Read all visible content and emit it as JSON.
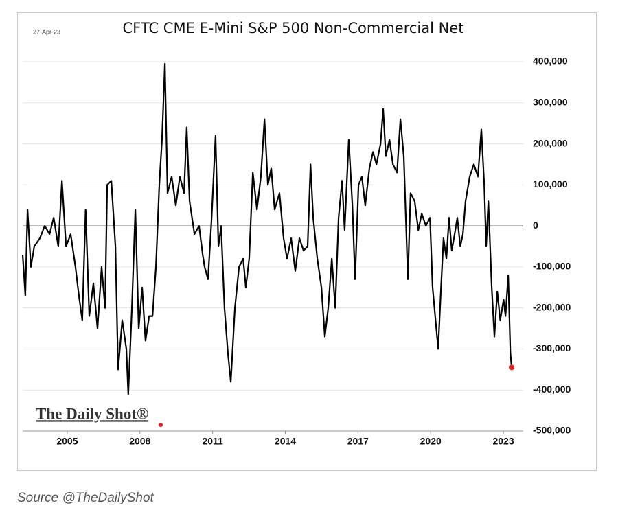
{
  "chart_data": {
    "type": "line",
    "title": "CFTC CME E-Mini S&P 500 Non-Commercial Net",
    "date_note": "27-Apr-23",
    "watermark": "The Daily Shot®",
    "x": [
      2003.16,
      2003.27,
      2003.36,
      2003.5,
      2003.64,
      2003.87,
      2004.07,
      2004.27,
      2004.44,
      2004.63,
      2004.78,
      2004.95,
      2005.14,
      2005.34,
      2005.48,
      2005.62,
      2005.76,
      2005.91,
      2006.08,
      2006.25,
      2006.42,
      2006.56,
      2006.65,
      2006.82,
      2006.99,
      2007.1,
      2007.27,
      2007.44,
      2007.52,
      2007.67,
      2007.81,
      2007.95,
      2008.09,
      2008.23,
      2008.38,
      2008.52,
      2008.66,
      2008.8,
      2008.91,
      2009.03,
      2009.14,
      2009.31,
      2009.48,
      2009.65,
      2009.82,
      2009.93,
      2010.05,
      2010.25,
      2010.44,
      2010.59,
      2010.67,
      2010.81,
      2010.95,
      2011.12,
      2011.24,
      2011.35,
      2011.49,
      2011.63,
      2011.75,
      2011.92,
      2012.09,
      2012.26,
      2012.37,
      2012.51,
      2012.66,
      2012.83,
      2012.99,
      2013.14,
      2013.28,
      2013.42,
      2013.56,
      2013.76,
      2013.93,
      2014.07,
      2014.24,
      2014.41,
      2014.58,
      2014.75,
      2014.92,
      2015.04,
      2015.15,
      2015.32,
      2015.49,
      2015.63,
      2015.77,
      2015.92,
      2016.06,
      2016.2,
      2016.34,
      2016.45,
      2016.62,
      2016.77,
      2016.88,
      2017.02,
      2017.16,
      2017.3,
      2017.47,
      2017.62,
      2017.76,
      2017.93,
      2018.04,
      2018.15,
      2018.3,
      2018.44,
      2018.61,
      2018.75,
      2018.89,
      2019.06,
      2019.17,
      2019.34,
      2019.49,
      2019.63,
      2019.8,
      2019.97,
      2020.08,
      2020.2,
      2020.31,
      2020.42,
      2020.53,
      2020.65,
      2020.76,
      2020.87,
      2020.99,
      2021.1,
      2021.22,
      2021.33,
      2021.44,
      2021.61,
      2021.78,
      2021.95,
      2022.09,
      2022.21,
      2022.29,
      2022.38,
      2022.52,
      2022.63,
      2022.75,
      2022.87,
      2023.01,
      2023.09,
      2023.2,
      2023.29,
      2023.34
    ],
    "series": [
      {
        "color": "#000000",
        "end_marker_color": "#e02020",
        "values": [
          -70000,
          -170000,
          40000,
          -100000,
          -50000,
          -30000,
          0,
          -20000,
          20000,
          -50000,
          110000,
          -50000,
          -20000,
          -100000,
          -170000,
          -230000,
          40000,
          -220000,
          -140000,
          -250000,
          -100000,
          -200000,
          100000,
          110000,
          -50000,
          -350000,
          -230000,
          -300000,
          -410000,
          -200000,
          40000,
          -250000,
          -150000,
          -280000,
          -220000,
          -220000,
          -100000,
          100000,
          210000,
          395000,
          80000,
          120000,
          50000,
          120000,
          80000,
          240000,
          60000,
          -20000,
          0,
          -70000,
          -100000,
          -130000,
          10000,
          220000,
          -50000,
          0,
          -200000,
          -310000,
          -380000,
          -200000,
          -100000,
          -80000,
          -150000,
          -80000,
          130000,
          40000,
          120000,
          260000,
          100000,
          140000,
          40000,
          80000,
          -30000,
          -80000,
          -30000,
          -110000,
          -30000,
          -60000,
          -50000,
          150000,
          20000,
          -80000,
          -150000,
          -270000,
          -200000,
          -80000,
          -200000,
          20000,
          110000,
          -10000,
          210000,
          50000,
          -130000,
          100000,
          120000,
          50000,
          140000,
          180000,
          150000,
          200000,
          285000,
          170000,
          210000,
          150000,
          130000,
          260000,
          170000,
          -130000,
          80000,
          60000,
          -10000,
          30000,
          0,
          20000,
          -150000,
          -230000,
          -300000,
          -160000,
          -30000,
          -80000,
          20000,
          -60000,
          -20000,
          20000,
          -50000,
          -20000,
          60000,
          120000,
          150000,
          120000,
          235000,
          100000,
          -50000,
          60000,
          -150000,
          -270000,
          -160000,
          -230000,
          -180000,
          -220000,
          -120000,
          -310000,
          -345000
        ]
      }
    ],
    "xlim": [
      2003.16,
      2023.82
    ],
    "xticks": [
      2005,
      2008,
      2011,
      2014,
      2017,
      2020,
      2023
    ],
    "ylim": [
      -500000,
      400000
    ],
    "yticks": [
      {
        "value": -500000,
        "label": "-500,000"
      },
      {
        "value": -400000,
        "label": "-400,000"
      },
      {
        "value": -300000,
        "label": "-300,000"
      },
      {
        "value": -200000,
        "label": "-200,000"
      },
      {
        "value": -100000,
        "label": "-100,000"
      },
      0,
      {
        "value": 100000,
        "label": "100,000"
      },
      {
        "value": 200000,
        "label": "200,000"
      },
      {
        "value": 300000,
        "label": "300,000"
      },
      {
        "value": 400000,
        "label": "400,000"
      }
    ],
    "grid": true
  },
  "source": "Source @TheDailyShot"
}
